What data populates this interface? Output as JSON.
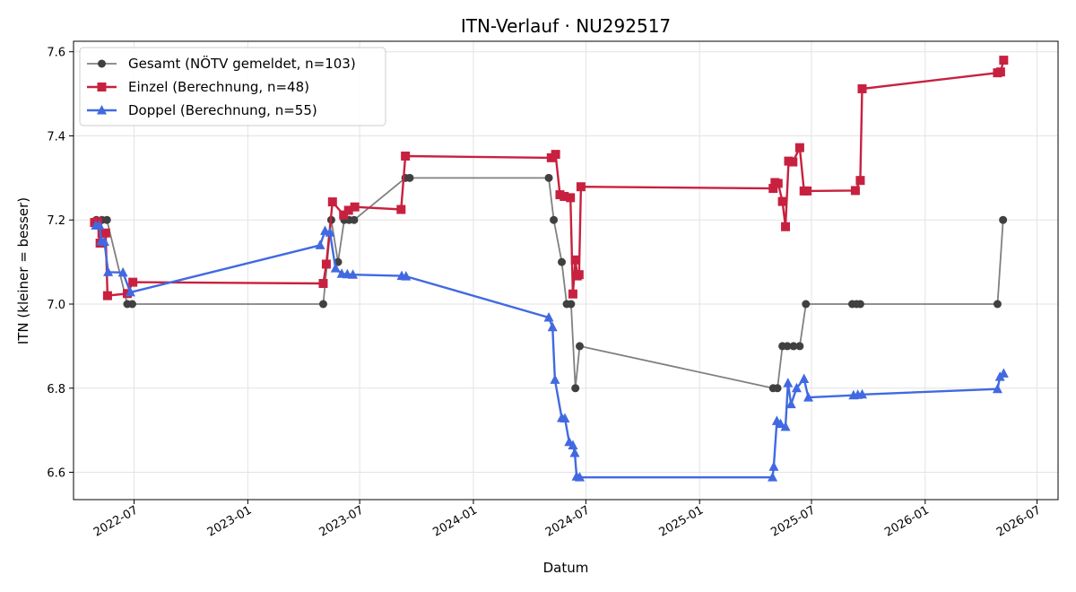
{
  "chart_data": {
    "type": "line",
    "title": "ITN-Verlauf · NU292517",
    "xlabel": "Datum",
    "ylabel": "ITN  (kleiner = besser)",
    "x_ticks": [
      "2022-07",
      "2023-01",
      "2023-07",
      "2024-01",
      "2024-07",
      "2025-01",
      "2025-07",
      "2026-01",
      "2026-07"
    ],
    "y_ticks": [
      "6.6",
      "6.8",
      "7.0",
      "7.2",
      "7.4",
      "7.6"
    ],
    "xlim": [
      "2022-03-25",
      "2026-08-04"
    ],
    "ylim": [
      6.535,
      7.625
    ],
    "grid": true,
    "legend_position": "top-left",
    "series": [
      {
        "name": "Gesamt (NÖTV gemeldet, n=103)",
        "color": "#808080",
        "marker_color": "#404040",
        "marker": "circle",
        "points": [
          [
            "2022-05-01",
            7.2
          ],
          [
            "2022-05-10",
            7.2
          ],
          [
            "2022-05-18",
            7.2
          ],
          [
            "2022-06-20",
            7.0
          ],
          [
            "2022-06-28",
            7.0
          ],
          [
            "2023-05-03",
            7.0
          ],
          [
            "2023-05-16",
            7.2
          ],
          [
            "2023-05-27",
            7.1
          ],
          [
            "2023-06-06",
            7.2
          ],
          [
            "2023-06-14",
            7.2
          ],
          [
            "2023-06-22",
            7.2
          ],
          [
            "2023-09-13",
            7.3
          ],
          [
            "2023-09-20",
            7.3
          ],
          [
            "2024-05-02",
            7.3
          ],
          [
            "2024-05-10",
            7.2
          ],
          [
            "2024-05-23",
            7.1
          ],
          [
            "2024-05-31",
            7.0
          ],
          [
            "2024-06-07",
            7.0
          ],
          [
            "2024-06-14",
            6.8
          ],
          [
            "2024-06-21",
            6.9
          ],
          [
            "2025-04-30",
            6.8
          ],
          [
            "2025-05-07",
            6.8
          ],
          [
            "2025-05-15",
            6.9
          ],
          [
            "2025-05-23",
            6.9
          ],
          [
            "2025-06-02",
            6.9
          ],
          [
            "2025-06-12",
            6.9
          ],
          [
            "2025-06-22",
            7.0
          ],
          [
            "2025-09-05",
            7.0
          ],
          [
            "2025-09-12",
            7.0
          ],
          [
            "2025-09-18",
            7.0
          ],
          [
            "2026-04-28",
            7.0
          ],
          [
            "2026-05-07",
            7.2
          ]
        ]
      },
      {
        "name": "Einzel (Berechnung, n=48)",
        "color": "#c7213f",
        "marker_color": "#c7213f",
        "marker": "square",
        "points": [
          [
            "2022-04-28",
            7.194
          ],
          [
            "2022-05-03",
            7.196
          ],
          [
            "2022-05-07",
            7.145
          ],
          [
            "2022-05-10",
            7.168
          ],
          [
            "2022-05-16",
            7.169
          ],
          [
            "2022-05-19",
            7.02
          ],
          [
            "2022-06-20",
            7.025
          ],
          [
            "2022-06-29",
            7.052
          ],
          [
            "2023-05-03",
            7.049
          ],
          [
            "2023-05-08",
            7.095
          ],
          [
            "2023-05-18",
            7.243
          ],
          [
            "2023-06-05",
            7.212
          ],
          [
            "2023-06-13",
            7.223
          ],
          [
            "2023-06-23",
            7.231
          ],
          [
            "2023-09-06",
            7.225
          ],
          [
            "2023-09-13",
            7.352
          ],
          [
            "2024-05-06",
            7.348
          ],
          [
            "2024-05-13",
            7.356
          ],
          [
            "2024-05-20",
            7.26
          ],
          [
            "2024-05-27",
            7.256
          ],
          [
            "2024-06-06",
            7.253
          ],
          [
            "2024-06-10",
            7.024
          ],
          [
            "2024-06-14",
            7.105
          ],
          [
            "2024-06-17",
            7.067
          ],
          [
            "2024-06-20",
            7.07
          ],
          [
            "2024-06-23",
            7.279
          ],
          [
            "2025-04-30",
            7.275
          ],
          [
            "2025-05-03",
            7.289
          ],
          [
            "2025-05-08",
            7.287
          ],
          [
            "2025-05-15",
            7.244
          ],
          [
            "2025-05-20",
            7.184
          ],
          [
            "2025-05-25",
            7.34
          ],
          [
            "2025-06-01",
            7.338
          ],
          [
            "2025-06-12",
            7.372
          ],
          [
            "2025-06-19",
            7.269
          ],
          [
            "2025-06-24",
            7.269
          ],
          [
            "2025-09-10",
            7.27
          ],
          [
            "2025-09-18",
            7.294
          ],
          [
            "2025-09-21",
            7.512
          ],
          [
            "2026-04-28",
            7.55
          ],
          [
            "2026-05-03",
            7.552
          ],
          [
            "2026-05-08",
            7.58
          ]
        ]
      },
      {
        "name": "Doppel (Berechnung, n=55)",
        "color": "#4169e1",
        "marker_color": "#4169e1",
        "marker": "triangle",
        "points": [
          [
            "2022-04-30",
            7.187
          ],
          [
            "2022-05-06",
            7.187
          ],
          [
            "2022-05-09",
            7.15
          ],
          [
            "2022-05-14",
            7.148
          ],
          [
            "2022-05-20",
            7.076
          ],
          [
            "2022-06-13",
            7.075
          ],
          [
            "2022-06-25",
            7.028
          ],
          [
            "2023-04-28",
            7.14
          ],
          [
            "2023-05-06",
            7.174
          ],
          [
            "2023-05-14",
            7.17
          ],
          [
            "2023-05-23",
            7.085
          ],
          [
            "2023-06-02",
            7.072
          ],
          [
            "2023-06-11",
            7.071
          ],
          [
            "2023-06-20",
            7.07
          ],
          [
            "2023-09-07",
            7.067
          ],
          [
            "2023-09-14",
            7.066
          ],
          [
            "2024-05-02",
            6.968
          ],
          [
            "2024-05-08",
            6.945
          ],
          [
            "2024-05-12",
            6.82
          ],
          [
            "2024-05-23",
            6.729
          ],
          [
            "2024-05-28",
            6.728
          ],
          [
            "2024-06-04",
            6.672
          ],
          [
            "2024-06-10",
            6.664
          ],
          [
            "2024-06-13",
            6.646
          ],
          [
            "2024-06-16",
            6.59
          ],
          [
            "2024-06-21",
            6.588
          ],
          [
            "2025-04-29",
            6.588
          ],
          [
            "2025-05-01",
            6.613
          ],
          [
            "2025-05-06",
            6.722
          ],
          [
            "2025-05-12",
            6.715
          ],
          [
            "2025-05-20",
            6.708
          ],
          [
            "2025-05-24",
            6.812
          ],
          [
            "2025-05-29",
            6.762
          ],
          [
            "2025-06-07",
            6.8
          ],
          [
            "2025-06-19",
            6.822
          ],
          [
            "2025-06-26",
            6.778
          ],
          [
            "2025-09-07",
            6.783
          ],
          [
            "2025-09-14",
            6.784
          ],
          [
            "2025-09-21",
            6.785
          ],
          [
            "2026-04-28",
            6.798
          ],
          [
            "2026-05-02",
            6.827
          ],
          [
            "2026-05-08",
            6.835
          ]
        ]
      }
    ]
  }
}
